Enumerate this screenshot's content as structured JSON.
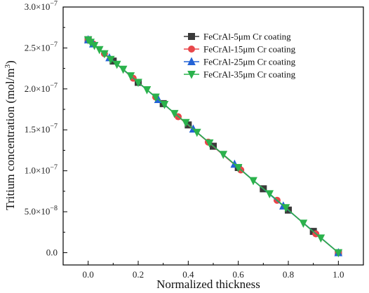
{
  "chart_data": {
    "type": "line",
    "title": "",
    "xlabel": "Normalized thickness",
    "ylabel": "Tritium concentration (mol/m³)",
    "xlim": [
      -0.1,
      1.1
    ],
    "ylim": [
      -1.5e-08,
      3e-07
    ],
    "x_ticks": [
      0.0,
      0.2,
      0.4,
      0.6,
      0.8,
      1.0
    ],
    "x_tick_labels": [
      "0.0",
      "0.2",
      "0.4",
      "0.6",
      "0.8",
      "1.0"
    ],
    "y_ticks": [
      0,
      5e-08,
      1e-07,
      1.5e-07,
      2e-07,
      2.5e-07,
      3e-07
    ],
    "y_tick_labels": [
      {
        "mant": "0.0",
        "exp": ""
      },
      {
        "mant": "5.0×10",
        "exp": "−8"
      },
      {
        "mant": "1.0×10",
        "exp": "−7"
      },
      {
        "mant": "1.5×10",
        "exp": "−7"
      },
      {
        "mant": "2.0×10",
        "exp": "−7"
      },
      {
        "mant": "2.5×10",
        "exp": "−7"
      },
      {
        "mant": "3.0×10",
        "exp": "−7"
      }
    ],
    "grid": false,
    "legend_position": "top-right",
    "series": [
      {
        "name": "FeCrAl-5μm Cr coating",
        "color": "#3a3a3a",
        "marker": "square",
        "x": [
          0.0,
          0.1,
          0.2,
          0.3,
          0.4,
          0.5,
          0.6,
          0.7,
          0.8,
          0.9,
          1.0
        ],
        "y": [
          2.6e-07,
          2.34e-07,
          2.08e-07,
          1.82e-07,
          1.56e-07,
          1.3e-07,
          1.04e-07,
          7.8e-08,
          5.2e-08,
          2.6e-08,
          0.0
        ]
      },
      {
        "name": "FeCrAl-15μm Cr coating",
        "color": "#e8474a",
        "marker": "circle",
        "x": [
          0.0,
          0.02,
          0.065,
          0.18,
          0.27,
          0.36,
          0.48,
          0.61,
          0.755,
          0.91,
          1.0
        ],
        "y": [
          2.6e-07,
          2.55e-07,
          2.43e-07,
          2.13e-07,
          1.9e-07,
          1.66e-07,
          1.35e-07,
          1.01e-07,
          6.4e-08,
          2.3e-08,
          0.0
        ]
      },
      {
        "name": "FeCrAl-25μm Cr coating",
        "color": "#2463d6",
        "marker": "triangle-up",
        "x": [
          0.0,
          0.02,
          0.085,
          0.28,
          0.42,
          0.585,
          0.78,
          1.0
        ],
        "y": [
          2.6e-07,
          2.55e-07,
          2.38e-07,
          1.87e-07,
          1.51e-07,
          1.08e-07,
          5.7e-08,
          0.0
        ]
      },
      {
        "name": "FeCrAl-35μm Cr coating",
        "color": "#2bb24c",
        "marker": "triangle-down",
        "x": [
          0.0,
          0.01,
          0.025,
          0.045,
          0.065,
          0.09,
          0.115,
          0.14,
          0.17,
          0.2,
          0.235,
          0.27,
          0.305,
          0.345,
          0.39,
          0.435,
          0.485,
          0.54,
          0.6,
          0.66,
          0.725,
          0.79,
          0.86,
          0.93,
          1.0
        ],
        "y": [
          2.6e-07,
          2.57e-07,
          2.53e-07,
          2.48e-07,
          2.43e-07,
          2.36e-07,
          2.3e-07,
          2.24e-07,
          2.16e-07,
          2.08e-07,
          1.99e-07,
          1.9e-07,
          1.81e-07,
          1.7e-07,
          1.59e-07,
          1.47e-07,
          1.34e-07,
          1.2e-07,
          1.04e-07,
          8.8e-08,
          7.2e-08,
          5.5e-08,
          3.6e-08,
          1.8e-08,
          0.0
        ]
      }
    ]
  }
}
